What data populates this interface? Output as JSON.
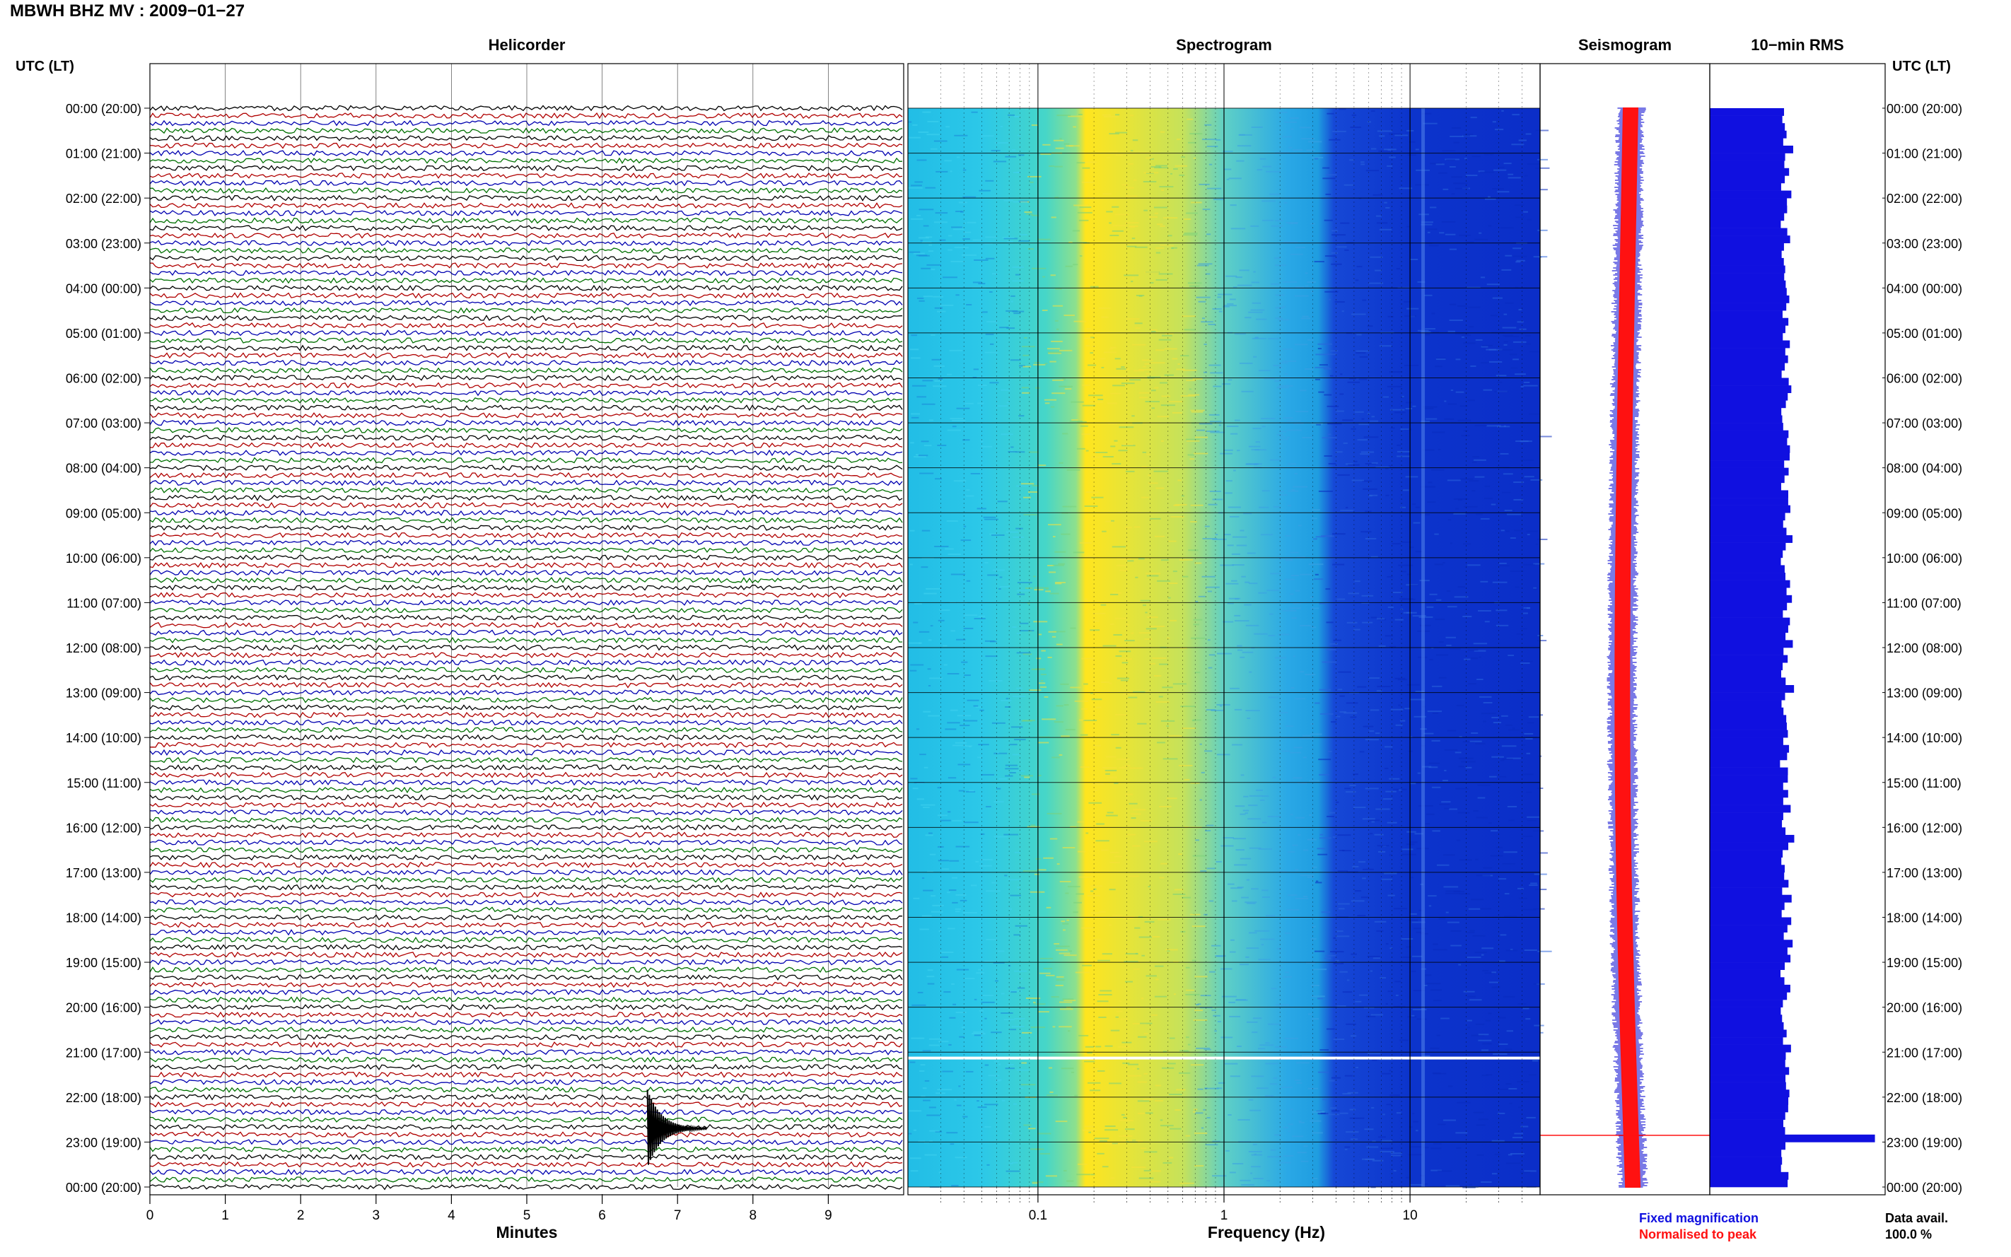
{
  "header": {
    "title": "MBWH BHZ MV : 2009−01−27"
  },
  "labels": {
    "utc_left": "UTC (LT)",
    "utc_right": "UTC (LT)"
  },
  "footer": {
    "fixed": "Fixed magnification",
    "normalised": "Normalised to peak",
    "data_avail_label": "Data avail.",
    "data_avail_value": "100.0 %"
  },
  "colors": {
    "trace_cycle": [
      "#000000",
      "#b00000",
      "#0000b0",
      "#007000"
    ],
    "rms_bar": "#1010e0",
    "seis_fixed": "#2a2ad8",
    "seis_norm": "#ff1111",
    "spec_low": "#22bde6",
    "spec_peak": "#ffe51e",
    "spec_mid": "#1f9de0",
    "spec_high": "#0b2ec8"
  },
  "chart_data": [
    {
      "type": "line",
      "panel": "helicorder",
      "title": "Helicorder",
      "xlabel": "Minutes",
      "x_ticks": [
        "0",
        "1",
        "2",
        "3",
        "4",
        "5",
        "6",
        "7",
        "8",
        "9"
      ],
      "xlim": [
        0,
        10
      ],
      "y_tick_labels": [
        "00:00 (20:00)",
        "01:00 (21:00)",
        "02:00 (22:00)",
        "03:00 (23:00)",
        "04:00 (00:00)",
        "05:00 (01:00)",
        "06:00 (02:00)",
        "07:00 (03:00)",
        "08:00 (04:00)",
        "09:00 (05:00)",
        "10:00 (06:00)",
        "11:00 (07:00)",
        "12:00 (08:00)",
        "13:00 (09:00)",
        "14:00 (10:00)",
        "15:00 (11:00)",
        "16:00 (12:00)",
        "17:00 (13:00)",
        "18:00 (14:00)",
        "19:00 (15:00)",
        "20:00 (16:00)",
        "21:00 (17:00)",
        "22:00 (18:00)",
        "23:00 (19:00)",
        "00:00 (20:00)"
      ],
      "traces_per_hour": 6,
      "event": {
        "hour": 22.7,
        "minute": 6.6
      }
    },
    {
      "type": "heatmap",
      "panel": "spectrogram",
      "title": "Spectrogram",
      "xlabel": "Frequency (Hz)",
      "x_scale": "log",
      "x_ticks": [
        "0.1",
        "1",
        "10"
      ],
      "xlim": [
        0.02,
        50
      ],
      "peak_band_hz": [
        0.18,
        0.6
      ],
      "gap_hour": 21.1
    },
    {
      "type": "line",
      "panel": "seismogram",
      "title": "Seismogram",
      "series": [
        {
          "name": "Fixed magnification"
        },
        {
          "name": "Normalised to peak"
        }
      ],
      "spike_hour": 22.85
    },
    {
      "type": "bar",
      "panel": "rms",
      "title": "10−min RMS",
      "orientation": "horizontal",
      "bars_per_hour": 6,
      "hours": 24,
      "pattern": [
        0.66,
        0.68,
        0.7,
        0.72,
        0.69,
        0.75,
        0.71,
        0.67,
        0.73,
        0.7,
        0.68,
        0.74,
        0.7,
        0.72,
        0.69,
        0.67,
        0.71,
        0.76,
        0.7,
        0.68
      ],
      "spike": {
        "bar": 137,
        "value": 0.98
      }
    }
  ]
}
